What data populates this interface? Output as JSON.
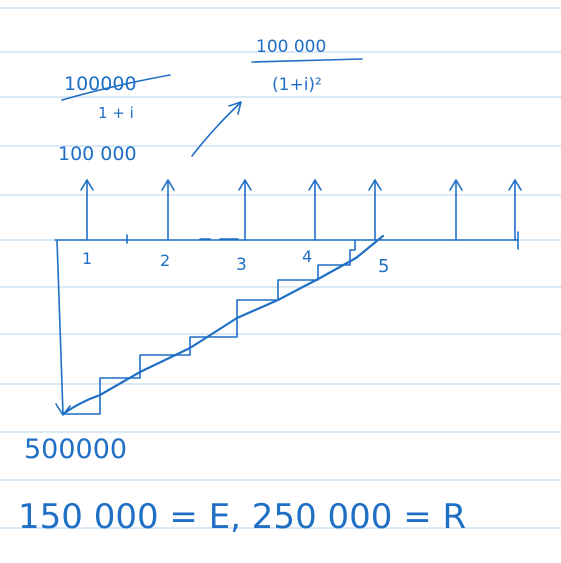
{
  "notes": {
    "pv_year1_numerator": "100000",
    "pv_year1_denominator": "1 + i",
    "pv_year2_numerator": "100 000",
    "pv_year2_denominator": "(1+i)²",
    "annual_payment": "100 000",
    "initial_investment": "500000",
    "bottom_equation": "150 000 = E, 250 000 = R"
  },
  "timeline": {
    "tick_labels": [
      "1",
      "2",
      "3",
      "4",
      "5"
    ]
  },
  "colors": {
    "ink": "#1f6fc4",
    "ruled_line": "#c5dcf2",
    "paper": "#ffffff"
  }
}
